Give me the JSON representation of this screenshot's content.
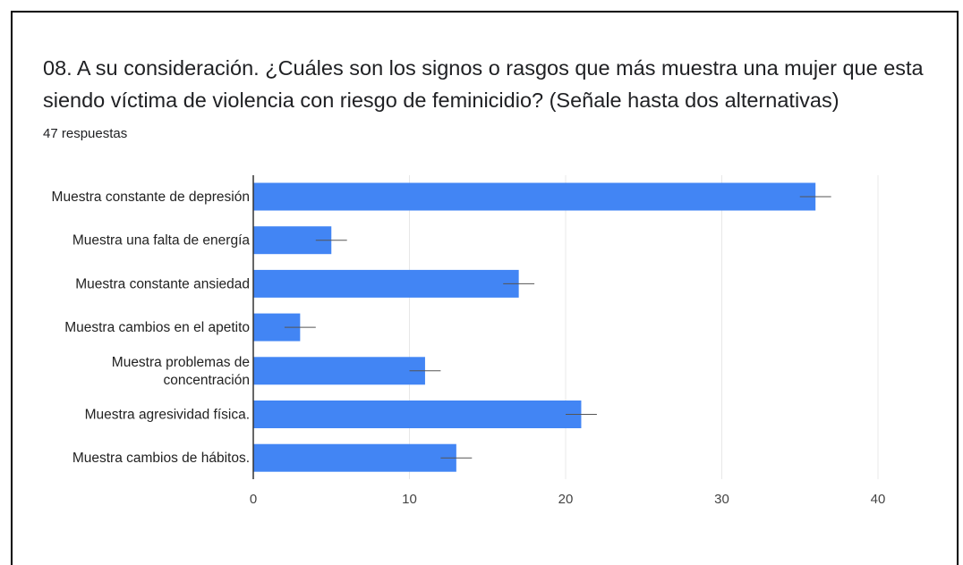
{
  "question": {
    "title": "08. A su consideración. ¿Cuáles son los signos o rasgos que más muestra una mujer que esta siendo víctima de violencia con riesgo de feminicidio? (Señale hasta dos alternativas)",
    "responses": "47 respuestas"
  },
  "colors": {
    "bar": "#4285f4",
    "grid": "#e8e8e8",
    "axis": "#333333"
  },
  "chart_data": {
    "type": "bar",
    "orientation": "horizontal",
    "categories": [
      [
        "Muestra constante de depresión"
      ],
      [
        "Muestra una falta de energía"
      ],
      [
        "Muestra constante ansiedad"
      ],
      [
        "Muestra cambios en el apetito"
      ],
      [
        "Muestra problemas de",
        "concentración"
      ],
      [
        "Muestra agresividad física."
      ],
      [
        "Muestra cambios de hábitos."
      ]
    ],
    "values": [
      36,
      5,
      17,
      3,
      11,
      21,
      13
    ],
    "error": [
      1,
      1,
      1,
      1,
      1,
      1,
      1
    ],
    "xticks": [
      "0",
      "10",
      "20",
      "30",
      "40"
    ],
    "xlim": [
      0,
      40
    ],
    "grid": true
  }
}
